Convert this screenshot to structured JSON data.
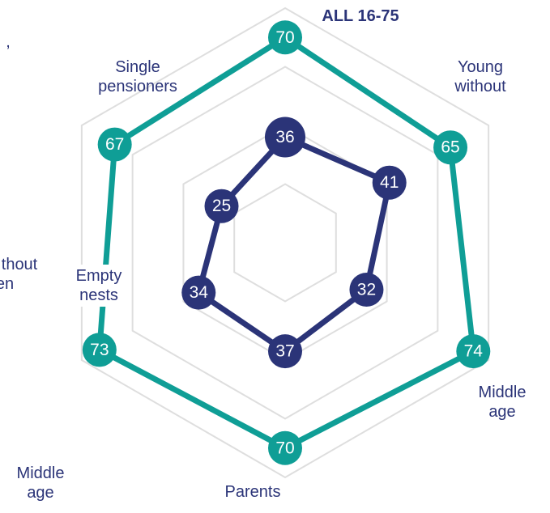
{
  "chart_data": {
    "type": "radar",
    "categories": [
      "ALL 16-75",
      "Young without",
      "Middle age",
      "Parents",
      "Empty nests",
      "Single pensioners"
    ],
    "series": [
      {
        "color": "#0f9e96",
        "values": [
          70,
          65,
          74,
          70,
          73,
          67
        ]
      },
      {
        "color": "#2b3478",
        "values": [
          36,
          41,
          32,
          37,
          34,
          25
        ]
      }
    ],
    "rlim": [
      0,
      80
    ],
    "rticks": [
      20,
      40,
      60,
      80
    ],
    "grid": true,
    "fragments": [
      ",",
      "thout",
      "en",
      "Middle age"
    ]
  }
}
